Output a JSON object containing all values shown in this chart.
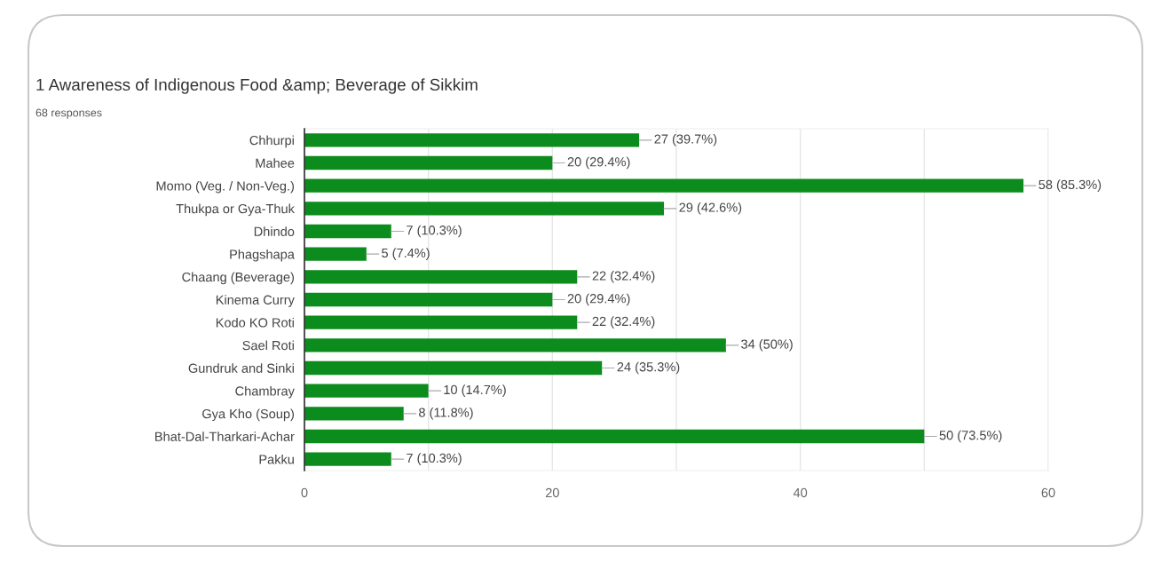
{
  "chart_data": {
    "type": "bar",
    "orientation": "horizontal",
    "title": "1 Awareness of Indigenous Food &amp; Beverage of Sikkim",
    "subtitle": "68 responses",
    "categories": [
      "Chhurpi",
      "Mahee",
      "Momo (Veg. / Non-Veg.)",
      "Thukpa or Gya-Thuk",
      "Dhindo",
      "Phagshapa",
      "Chaang (Beverage)",
      "Kinema Curry",
      "Kodo KO Roti",
      "Sael Roti",
      "Gundruk and Sinki",
      "Chambray",
      "Gya Kho (Soup)",
      "Bhat-Dal-Tharkari-Achar",
      "Pakku"
    ],
    "values": [
      27,
      20,
      58,
      29,
      7,
      5,
      22,
      20,
      22,
      34,
      24,
      10,
      8,
      50,
      7
    ],
    "value_labels": [
      "27 (39.7%)",
      "20 (29.4%)",
      "58 (85.3%)",
      "29 (42.6%)",
      "7 (10.3%)",
      "5 (7.4%)",
      "22 (32.4%)",
      "20 (29.4%)",
      "22 (32.4%)",
      "34 (50%)",
      "24 (35.3%)",
      "10 (14.7%)",
      "8 (11.8%)",
      "50 (73.5%)",
      "7 (10.3%)"
    ],
    "color": "#0b8c1c",
    "xlim": [
      0,
      60
    ],
    "xticks": [
      0,
      {
        "value": 10,
        "label": null
      },
      20,
      {
        "value": 30,
        "label": null
      },
      40,
      {
        "value": 50,
        "label": null
      },
      60
    ],
    "grid": "x",
    "legend": false
  }
}
